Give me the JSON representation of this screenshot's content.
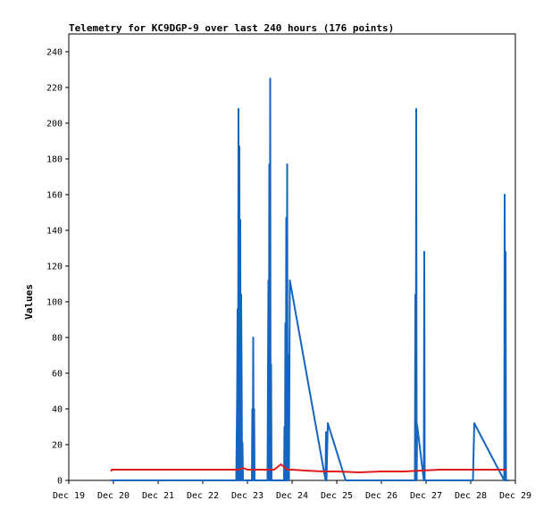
{
  "chart_data": {
    "type": "line",
    "title": "Telemetry for KC9DGP-9 over last 240 hours (176 points)",
    "xlabel": "",
    "ylabel": "Values",
    "x_unit": "days (Dec)",
    "xlim": [
      19,
      29
    ],
    "ylim": [
      0,
      250
    ],
    "x_tick_labels": [
      "Dec 19",
      "Dec 20",
      "Dec 21",
      "Dec 22",
      "Dec 23",
      "Dec 24",
      "Dec 25",
      "Dec 26",
      "Dec 27",
      "Dec 28",
      "Dec 29"
    ],
    "y_ticks": [
      0,
      20,
      40,
      60,
      80,
      100,
      120,
      140,
      160,
      180,
      200,
      220,
      240
    ],
    "grid": false,
    "legend": "none",
    "series": [
      {
        "color": "#1565c0",
        "points": [
          [
            19.95,
            0
          ],
          [
            22.75,
            0
          ],
          [
            22.77,
            48
          ],
          [
            22.78,
            96
          ],
          [
            22.79,
            0
          ],
          [
            22.8,
            208
          ],
          [
            22.81,
            0
          ],
          [
            22.82,
            187
          ],
          [
            22.83,
            0
          ],
          [
            22.84,
            146
          ],
          [
            22.85,
            0
          ],
          [
            22.86,
            104
          ],
          [
            22.87,
            62
          ],
          [
            22.88,
            0
          ],
          [
            22.89,
            21
          ],
          [
            22.9,
            0
          ],
          [
            23.1,
            0
          ],
          [
            23.11,
            40
          ],
          [
            23.12,
            0
          ],
          [
            23.13,
            80
          ],
          [
            23.14,
            0
          ],
          [
            23.15,
            40
          ],
          [
            23.16,
            0
          ],
          [
            23.45,
            0
          ],
          [
            23.46,
            56
          ],
          [
            23.47,
            112
          ],
          [
            23.48,
            0
          ],
          [
            23.49,
            177
          ],
          [
            23.5,
            0
          ],
          [
            23.51,
            225
          ],
          [
            23.52,
            0
          ],
          [
            23.53,
            65
          ],
          [
            23.54,
            0
          ],
          [
            23.82,
            0
          ],
          [
            23.83,
            30
          ],
          [
            23.84,
            0
          ],
          [
            23.85,
            88
          ],
          [
            23.86,
            0
          ],
          [
            23.87,
            147
          ],
          [
            23.88,
            0
          ],
          [
            23.89,
            177
          ],
          [
            23.9,
            0
          ],
          [
            23.91,
            25
          ],
          [
            23.92,
            70
          ],
          [
            23.93,
            0
          ],
          [
            23.95,
            112
          ],
          [
            24.75,
            0
          ],
          [
            24.76,
            27
          ],
          [
            24.77,
            0
          ],
          [
            24.8,
            32
          ],
          [
            25.2,
            0
          ],
          [
            26.75,
            0
          ],
          [
            26.76,
            104
          ],
          [
            26.77,
            0
          ],
          [
            26.78,
            208
          ],
          [
            26.79,
            0
          ],
          [
            26.8,
            31
          ],
          [
            26.95,
            0
          ],
          [
            26.96,
            128
          ],
          [
            26.97,
            0
          ],
          [
            28.05,
            0
          ],
          [
            28.08,
            32
          ],
          [
            28.75,
            0
          ],
          [
            28.76,
            160
          ],
          [
            28.77,
            0
          ],
          [
            28.78,
            128
          ],
          [
            28.79,
            0
          ],
          [
            28.85,
            0
          ]
        ]
      },
      {
        "color": "#e0191b",
        "points": [
          [
            19.95,
            5
          ],
          [
            19.96,
            6
          ],
          [
            20.5,
            6
          ],
          [
            21.5,
            6
          ],
          [
            22.5,
            6
          ],
          [
            22.8,
            6
          ],
          [
            22.9,
            7
          ],
          [
            23.0,
            6
          ],
          [
            23.3,
            6
          ],
          [
            23.5,
            6
          ],
          [
            23.6,
            6
          ],
          [
            23.7,
            8
          ],
          [
            23.75,
            9
          ],
          [
            23.8,
            8
          ],
          [
            23.85,
            7
          ],
          [
            23.9,
            6
          ],
          [
            24.0,
            6
          ],
          [
            24.3,
            5.5
          ],
          [
            24.7,
            5
          ],
          [
            25.0,
            5
          ],
          [
            25.5,
            4.5
          ],
          [
            26.0,
            5
          ],
          [
            26.5,
            5
          ],
          [
            26.9,
            5.5
          ],
          [
            27.3,
            6
          ],
          [
            27.8,
            6
          ],
          [
            28.2,
            6
          ],
          [
            28.6,
            6
          ],
          [
            28.8,
            6
          ]
        ]
      }
    ]
  }
}
